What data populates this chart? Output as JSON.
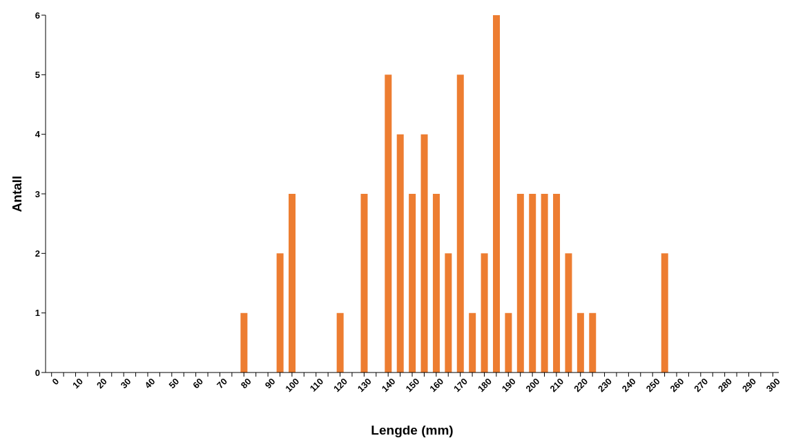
{
  "chart_data": {
    "type": "bar",
    "xlabel": "Lengde (mm)",
    "ylabel": "Antall",
    "categories": [
      "0",
      null,
      "10",
      null,
      "20",
      null,
      "30",
      null,
      "40",
      null,
      "50",
      null,
      "60",
      null,
      "70",
      null,
      "80",
      null,
      "90",
      null,
      "100",
      null,
      "110",
      null,
      "120",
      null,
      "130",
      null,
      "140",
      null,
      "150",
      null,
      "160",
      null,
      "170",
      null,
      "180",
      null,
      "190",
      null,
      "200",
      null,
      "210",
      null,
      "220",
      null,
      "230",
      null,
      "240",
      null,
      "250",
      null,
      "260",
      null,
      "270",
      null,
      "280",
      null,
      "290",
      null,
      "300"
    ],
    "values": [
      0,
      0,
      0,
      0,
      0,
      0,
      0,
      0,
      0,
      0,
      0,
      0,
      0,
      0,
      0,
      0,
      1,
      0,
      0,
      2,
      3,
      0,
      0,
      0,
      1,
      0,
      3,
      0,
      5,
      4,
      3,
      4,
      3,
      2,
      5,
      1,
      2,
      6,
      1,
      3,
      3,
      3,
      3,
      2,
      1,
      1,
      0,
      0,
      0,
      0,
      0,
      2,
      0,
      0,
      0,
      0,
      0,
      0,
      0,
      0,
      0
    ],
    "color": "#ed7d31",
    "ylim": [
      0,
      6
    ],
    "yticks": [
      0,
      1,
      2,
      3,
      4,
      5,
      6
    ],
    "grid": false
  }
}
